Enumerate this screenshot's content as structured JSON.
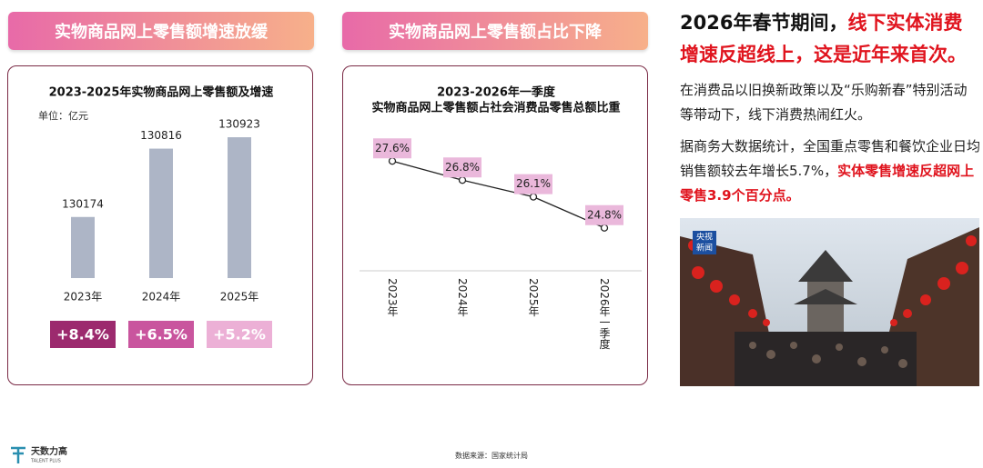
{
  "chart_data": [
    {
      "type": "bar",
      "section_title": "实物商品网上零售额增速放缓",
      "title": "2023-2025年实物商品网上零售额及增速",
      "unit": "单位：亿元",
      "categories": [
        "2023年",
        "2024年",
        "2025年"
      ],
      "values": [
        130174,
        130816,
        130923
      ],
      "color": "#adb5c6",
      "ylim": [
        129600,
        131000
      ],
      "growth_labels": [
        "+8.4%",
        "+6.5%",
        "+5.2%"
      ],
      "growth_colors": [
        "#9c2a6e",
        "#c9559e",
        "#ecb0d6"
      ]
    },
    {
      "type": "line",
      "section_title": "实物商品网上零售额占比下降",
      "title": [
        "2023-2026年一季度",
        "实物商品网上零售额占社会消费品零售总额比重"
      ],
      "categories": [
        "2023年",
        "2024年",
        "2025年",
        "2026年一季度"
      ],
      "values": [
        27.6,
        26.8,
        26.1,
        24.8
      ],
      "value_labels": [
        "27.6%",
        "26.8%",
        "26.1%",
        "24.8%"
      ],
      "color": "#222222",
      "label_color": "#eab8db",
      "ylim": [
        23,
        29
      ]
    }
  ],
  "article": {
    "headline": [
      "2026年春节期间，",
      "线下实体消费增速反超线上，这是近年来首次。"
    ],
    "paragraphs": [
      [
        "在消费品以旧换新政策以及“乐购新春”特别活动等带动下，线下消费热闹红火。"
      ],
      [
        "据商务大数据统计，全国重点零售和餐饮企业日均销售额较去年增长5.7%，",
        "实体零售增速反超网上零售3.9个百分点。"
      ]
    ],
    "image_badge": [
      "央视",
      "新闻"
    ]
  },
  "footer": {
    "logo": [
      "天数力高",
      "TALENT PLUS"
    ],
    "source": "数据来源：国家统计局"
  }
}
